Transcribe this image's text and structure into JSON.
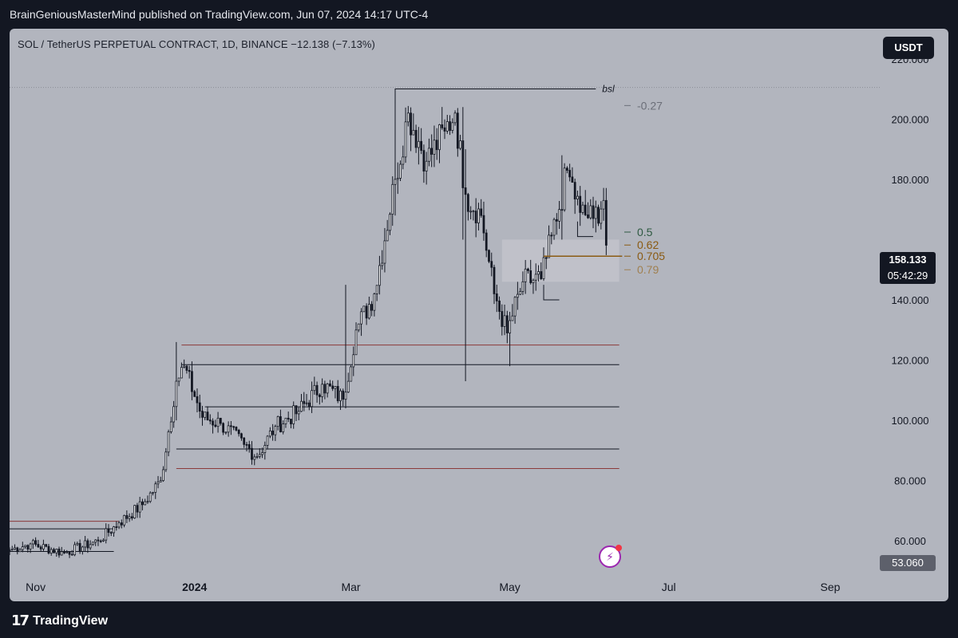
{
  "topbar": {
    "text": "BrainGeniousMasterMind published on TradingView.com, Jun 07, 2024 14:17 UTC-4"
  },
  "header": {
    "symbol_line": "SOL / TetherUS PERPETUAL CONTRACT, 1D, BINANCE  −12.138 (−7.13%)"
  },
  "currency_button": "USDT",
  "price_label": {
    "price": "158.133",
    "countdown": "05:42:29"
  },
  "low_label": "53.060",
  "footer": {
    "brand": "TradingView",
    "brand_mark": "17"
  },
  "colors": {
    "background": "#131722",
    "plot": "#b2b5be",
    "candle": "#131722",
    "red_line": "#8b3a3a",
    "fib_green": "#2e5941",
    "fib_gold": "#8a5a12",
    "fib_gray": "#868993"
  },
  "chart_data": {
    "type": "candlestick",
    "ylim": [
      50,
      230
    ],
    "x_range": [
      "2023-10-22",
      "2024-09-20"
    ],
    "y_ticks": [
      "220.000",
      "200.000",
      "180.000",
      "140.000",
      "120.000",
      "100.000",
      "80.000",
      "60.000"
    ],
    "x_ticks": [
      {
        "label": "Nov",
        "date": "2023-11-01"
      },
      {
        "label": "2024",
        "date": "2024-01-01"
      },
      {
        "label": "Mar",
        "date": "2024-03-01"
      },
      {
        "label": "May",
        "date": "2024-05-01"
      },
      {
        "label": "Jul",
        "date": "2024-07-01"
      },
      {
        "label": "Sep",
        "date": "2024-09-01"
      }
    ],
    "anchors": [
      [
        "2023-10-22",
        57
      ],
      [
        "2023-10-30",
        59
      ],
      [
        "2023-11-12",
        56
      ],
      [
        "2023-11-25",
        60
      ],
      [
        "2023-12-03",
        66
      ],
      [
        "2023-12-12",
        72
      ],
      [
        "2023-12-19",
        80
      ],
      [
        "2023-12-25",
        113
      ],
      [
        "2023-12-28",
        118
      ],
      [
        "2024-01-04",
        101
      ],
      [
        "2024-01-11",
        99
      ],
      [
        "2024-01-20",
        92
      ],
      [
        "2024-01-25",
        88
      ],
      [
        "2024-02-01",
        98
      ],
      [
        "2024-02-10",
        103
      ],
      [
        "2024-02-19",
        112
      ],
      [
        "2024-02-27",
        107
      ],
      [
        "2024-03-03",
        130
      ],
      [
        "2024-03-10",
        142
      ],
      [
        "2024-03-18",
        180
      ],
      [
        "2024-03-23",
        202
      ],
      [
        "2024-03-30",
        186
      ],
      [
        "2024-04-06",
        196
      ],
      [
        "2024-04-10",
        202
      ],
      [
        "2024-04-14",
        175
      ],
      [
        "2024-04-20",
        168
      ],
      [
        "2024-04-25",
        142
      ],
      [
        "2024-04-30",
        129
      ],
      [
        "2024-05-06",
        146
      ],
      [
        "2024-05-13",
        147
      ],
      [
        "2024-05-20",
        170
      ],
      [
        "2024-05-23",
        183
      ],
      [
        "2024-05-28",
        169
      ],
      [
        "2024-06-02",
        167
      ],
      [
        "2024-06-06",
        173
      ],
      [
        "2024-06-07",
        158.133
      ]
    ],
    "key_wicks": [
      [
        "2023-12-25",
        126,
        100
      ],
      [
        "2024-03-18",
        210,
        168
      ],
      [
        "2024-04-13",
        204,
        160
      ],
      [
        "2024-04-14",
        190,
        113
      ],
      [
        "2024-05-01",
        130,
        118
      ],
      [
        "2024-05-21",
        188,
        160
      ],
      [
        "2024-02-28",
        145,
        104
      ]
    ],
    "annotations": {
      "levels": [
        {
          "y": 125,
          "from": "2023-12-27",
          "to": "2024-06-12",
          "color": "red"
        },
        {
          "y": 118.5,
          "from": "2023-12-27",
          "to": "2024-06-12",
          "color": "black"
        },
        {
          "y": 104.5,
          "from": "2024-01-05",
          "to": "2024-06-12",
          "color": "black"
        },
        {
          "y": 90.5,
          "from": "2023-12-25",
          "to": "2024-06-12",
          "color": "black"
        },
        {
          "y": 84,
          "from": "2023-12-25",
          "to": "2024-06-12",
          "color": "red"
        },
        {
          "y": 66.5,
          "from": "2023-10-22",
          "to": "2023-12-03",
          "color": "red"
        },
        {
          "y": 64,
          "from": "2023-10-22",
          "to": "2023-12-01",
          "color": "black"
        },
        {
          "y": 56.5,
          "from": "2023-10-22",
          "to": "2023-12-01",
          "color": "black"
        }
      ],
      "bsl": {
        "label": "bsl",
        "y": 210,
        "from": "2024-03-18",
        "to": "2024-06-03"
      },
      "dotted_high": 210.5,
      "zone": {
        "y_top": 160,
        "y_bottom": 146,
        "from": "2024-04-28",
        "to": "2024-06-12"
      },
      "fib_levels": [
        {
          "label": "-0.27",
          "y": 204.5,
          "color": "#6b6e78"
        },
        {
          "label": "0.5",
          "y": 162.5,
          "color": "#2e5941"
        },
        {
          "label": "0.62",
          "y": 158.2,
          "color": "#8a5a12"
        },
        {
          "label": "0.705",
          "y": 154.5,
          "color": "#8a5a12"
        },
        {
          "label": "0.79",
          "y": 150,
          "color": "#a08050"
        }
      ],
      "orange_line": {
        "y": 154.5,
        "from": "2024-05-14",
        "to": "2024-06-07"
      },
      "small_boxes": [
        {
          "y_top": 145,
          "y_bottom": 140,
          "from": "2024-05-14",
          "to": "2024-05-20"
        },
        {
          "y_top": 166,
          "y_bottom": 161,
          "from": "2024-05-27",
          "to": "2024-06-02"
        }
      ]
    }
  }
}
